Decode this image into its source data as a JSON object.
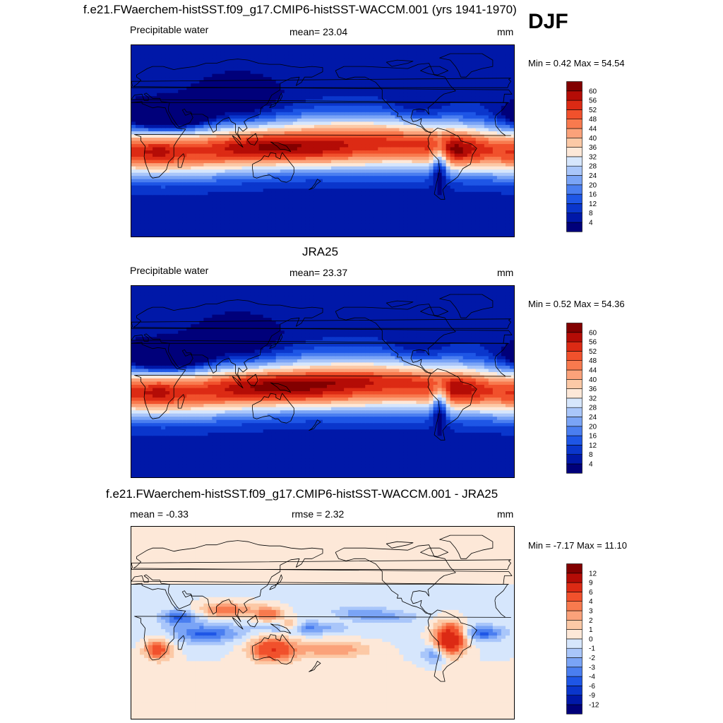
{
  "season": "DJF",
  "panels": [
    {
      "title": "f.e21.FWaerchem-histSST.f09_g17.CMIP6-histSST-WACCM.001 (yrs 1941-1970)",
      "left_label": "Precipitable water",
      "center_label": "mean=  23.04",
      "units": "mm",
      "minmax": "Min =   0.42 Max =  54.54"
    },
    {
      "title": "JRA25",
      "left_label": "Precipitable water",
      "center_label": "mean=  23.37",
      "units": "mm",
      "minmax": "Min =   0.52 Max =  54.36"
    },
    {
      "title": "f.e21.FWaerchem-histSST.f09_g17.CMIP6-histSST-WACCM.001 - JRA25",
      "left_label": "mean =  -0.33",
      "center_label": "rmse =   2.32",
      "units": "mm",
      "minmax": "Min =  -7.17 Max =  11.10"
    }
  ],
  "chart_data": [
    {
      "type": "heatmap",
      "title": "f.e21.FWaerchem-histSST.f09_g17.CMIP6-histSST-WACCM.001 (yrs 1941-1970)",
      "variable": "Precipitable water",
      "units": "mm",
      "mean": 23.04,
      "min": 0.42,
      "max": 54.54,
      "colorbar_levels": [
        4,
        8,
        12,
        16,
        20,
        24,
        28,
        32,
        36,
        40,
        44,
        48,
        52,
        56,
        60
      ],
      "colorbar_colors": [
        "#00007a",
        "#0018a8",
        "#0a36cc",
        "#1e56e6",
        "#4a7ef0",
        "#7aa4f6",
        "#a9c6fa",
        "#d6e6fc",
        "#fde8d8",
        "#fcc9a6",
        "#fba27a",
        "#f87a4e",
        "#f1512c",
        "#dc2a14",
        "#b40c06",
        "#820000"
      ]
    },
    {
      "type": "heatmap",
      "title": "JRA25",
      "variable": "Precipitable water",
      "units": "mm",
      "mean": 23.37,
      "min": 0.52,
      "max": 54.36,
      "colorbar_levels": [
        4,
        8,
        12,
        16,
        20,
        24,
        28,
        32,
        36,
        40,
        44,
        48,
        52,
        56,
        60
      ],
      "colorbar_colors": [
        "#00007a",
        "#0018a8",
        "#0a36cc",
        "#1e56e6",
        "#4a7ef0",
        "#7aa4f6",
        "#a9c6fa",
        "#d6e6fc",
        "#fde8d8",
        "#fcc9a6",
        "#fba27a",
        "#f87a4e",
        "#f1512c",
        "#dc2a14",
        "#b40c06",
        "#820000"
      ]
    },
    {
      "type": "heatmap",
      "title": "f.e21.FWaerchem-histSST.f09_g17.CMIP6-histSST-WACCM.001 - JRA25",
      "units": "mm",
      "mean": -0.33,
      "rmse": 2.32,
      "min": -7.17,
      "max": 11.1,
      "colorbar_levels": [
        -12,
        -9,
        -6,
        -4,
        -3,
        -2,
        -1,
        0,
        1,
        2,
        3,
        4,
        6,
        9,
        12
      ],
      "colorbar_colors": [
        "#00007a",
        "#0018a8",
        "#0a36cc",
        "#1e56e6",
        "#4a7ef0",
        "#7aa4f6",
        "#a9c6fa",
        "#d6e6fc",
        "#fde8d8",
        "#fcc9a6",
        "#fba27a",
        "#f87a4e",
        "#f1512c",
        "#dc2a14",
        "#b40c06",
        "#820000"
      ]
    }
  ]
}
